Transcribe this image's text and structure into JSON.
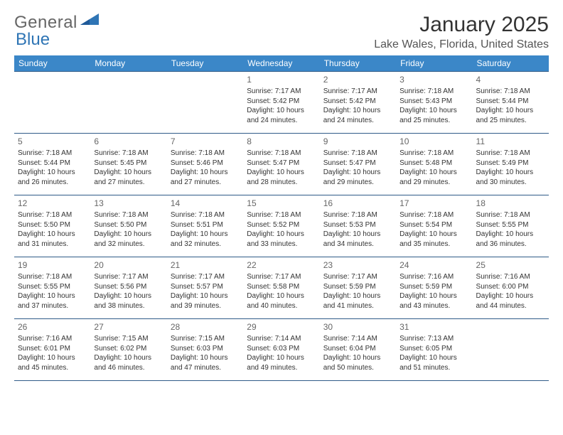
{
  "logo": {
    "text1": "General",
    "text2": "Blue"
  },
  "title": "January 2025",
  "location": "Lake Wales, Florida, United States",
  "colors": {
    "header_bg": "#3b87c8",
    "header_text": "#ffffff",
    "row_border": "#2f5b88",
    "text": "#333333",
    "daynum": "#666666",
    "logo_blue": "#2f75b5"
  },
  "weekdays": [
    "Sunday",
    "Monday",
    "Tuesday",
    "Wednesday",
    "Thursday",
    "Friday",
    "Saturday"
  ],
  "weeks": [
    [
      {
        "num": "",
        "lines": []
      },
      {
        "num": "",
        "lines": []
      },
      {
        "num": "",
        "lines": []
      },
      {
        "num": "1",
        "lines": [
          "Sunrise: 7:17 AM",
          "Sunset: 5:42 PM",
          "Daylight: 10 hours",
          "and 24 minutes."
        ]
      },
      {
        "num": "2",
        "lines": [
          "Sunrise: 7:17 AM",
          "Sunset: 5:42 PM",
          "Daylight: 10 hours",
          "and 24 minutes."
        ]
      },
      {
        "num": "3",
        "lines": [
          "Sunrise: 7:18 AM",
          "Sunset: 5:43 PM",
          "Daylight: 10 hours",
          "and 25 minutes."
        ]
      },
      {
        "num": "4",
        "lines": [
          "Sunrise: 7:18 AM",
          "Sunset: 5:44 PM",
          "Daylight: 10 hours",
          "and 25 minutes."
        ]
      }
    ],
    [
      {
        "num": "5",
        "lines": [
          "Sunrise: 7:18 AM",
          "Sunset: 5:44 PM",
          "Daylight: 10 hours",
          "and 26 minutes."
        ]
      },
      {
        "num": "6",
        "lines": [
          "Sunrise: 7:18 AM",
          "Sunset: 5:45 PM",
          "Daylight: 10 hours",
          "and 27 minutes."
        ]
      },
      {
        "num": "7",
        "lines": [
          "Sunrise: 7:18 AM",
          "Sunset: 5:46 PM",
          "Daylight: 10 hours",
          "and 27 minutes."
        ]
      },
      {
        "num": "8",
        "lines": [
          "Sunrise: 7:18 AM",
          "Sunset: 5:47 PM",
          "Daylight: 10 hours",
          "and 28 minutes."
        ]
      },
      {
        "num": "9",
        "lines": [
          "Sunrise: 7:18 AM",
          "Sunset: 5:47 PM",
          "Daylight: 10 hours",
          "and 29 minutes."
        ]
      },
      {
        "num": "10",
        "lines": [
          "Sunrise: 7:18 AM",
          "Sunset: 5:48 PM",
          "Daylight: 10 hours",
          "and 29 minutes."
        ]
      },
      {
        "num": "11",
        "lines": [
          "Sunrise: 7:18 AM",
          "Sunset: 5:49 PM",
          "Daylight: 10 hours",
          "and 30 minutes."
        ]
      }
    ],
    [
      {
        "num": "12",
        "lines": [
          "Sunrise: 7:18 AM",
          "Sunset: 5:50 PM",
          "Daylight: 10 hours",
          "and 31 minutes."
        ]
      },
      {
        "num": "13",
        "lines": [
          "Sunrise: 7:18 AM",
          "Sunset: 5:50 PM",
          "Daylight: 10 hours",
          "and 32 minutes."
        ]
      },
      {
        "num": "14",
        "lines": [
          "Sunrise: 7:18 AM",
          "Sunset: 5:51 PM",
          "Daylight: 10 hours",
          "and 32 minutes."
        ]
      },
      {
        "num": "15",
        "lines": [
          "Sunrise: 7:18 AM",
          "Sunset: 5:52 PM",
          "Daylight: 10 hours",
          "and 33 minutes."
        ]
      },
      {
        "num": "16",
        "lines": [
          "Sunrise: 7:18 AM",
          "Sunset: 5:53 PM",
          "Daylight: 10 hours",
          "and 34 minutes."
        ]
      },
      {
        "num": "17",
        "lines": [
          "Sunrise: 7:18 AM",
          "Sunset: 5:54 PM",
          "Daylight: 10 hours",
          "and 35 minutes."
        ]
      },
      {
        "num": "18",
        "lines": [
          "Sunrise: 7:18 AM",
          "Sunset: 5:55 PM",
          "Daylight: 10 hours",
          "and 36 minutes."
        ]
      }
    ],
    [
      {
        "num": "19",
        "lines": [
          "Sunrise: 7:18 AM",
          "Sunset: 5:55 PM",
          "Daylight: 10 hours",
          "and 37 minutes."
        ]
      },
      {
        "num": "20",
        "lines": [
          "Sunrise: 7:17 AM",
          "Sunset: 5:56 PM",
          "Daylight: 10 hours",
          "and 38 minutes."
        ]
      },
      {
        "num": "21",
        "lines": [
          "Sunrise: 7:17 AM",
          "Sunset: 5:57 PM",
          "Daylight: 10 hours",
          "and 39 minutes."
        ]
      },
      {
        "num": "22",
        "lines": [
          "Sunrise: 7:17 AM",
          "Sunset: 5:58 PM",
          "Daylight: 10 hours",
          "and 40 minutes."
        ]
      },
      {
        "num": "23",
        "lines": [
          "Sunrise: 7:17 AM",
          "Sunset: 5:59 PM",
          "Daylight: 10 hours",
          "and 41 minutes."
        ]
      },
      {
        "num": "24",
        "lines": [
          "Sunrise: 7:16 AM",
          "Sunset: 5:59 PM",
          "Daylight: 10 hours",
          "and 43 minutes."
        ]
      },
      {
        "num": "25",
        "lines": [
          "Sunrise: 7:16 AM",
          "Sunset: 6:00 PM",
          "Daylight: 10 hours",
          "and 44 minutes."
        ]
      }
    ],
    [
      {
        "num": "26",
        "lines": [
          "Sunrise: 7:16 AM",
          "Sunset: 6:01 PM",
          "Daylight: 10 hours",
          "and 45 minutes."
        ]
      },
      {
        "num": "27",
        "lines": [
          "Sunrise: 7:15 AM",
          "Sunset: 6:02 PM",
          "Daylight: 10 hours",
          "and 46 minutes."
        ]
      },
      {
        "num": "28",
        "lines": [
          "Sunrise: 7:15 AM",
          "Sunset: 6:03 PM",
          "Daylight: 10 hours",
          "and 47 minutes."
        ]
      },
      {
        "num": "29",
        "lines": [
          "Sunrise: 7:14 AM",
          "Sunset: 6:03 PM",
          "Daylight: 10 hours",
          "and 49 minutes."
        ]
      },
      {
        "num": "30",
        "lines": [
          "Sunrise: 7:14 AM",
          "Sunset: 6:04 PM",
          "Daylight: 10 hours",
          "and 50 minutes."
        ]
      },
      {
        "num": "31",
        "lines": [
          "Sunrise: 7:13 AM",
          "Sunset: 6:05 PM",
          "Daylight: 10 hours",
          "and 51 minutes."
        ]
      },
      {
        "num": "",
        "lines": []
      }
    ]
  ]
}
